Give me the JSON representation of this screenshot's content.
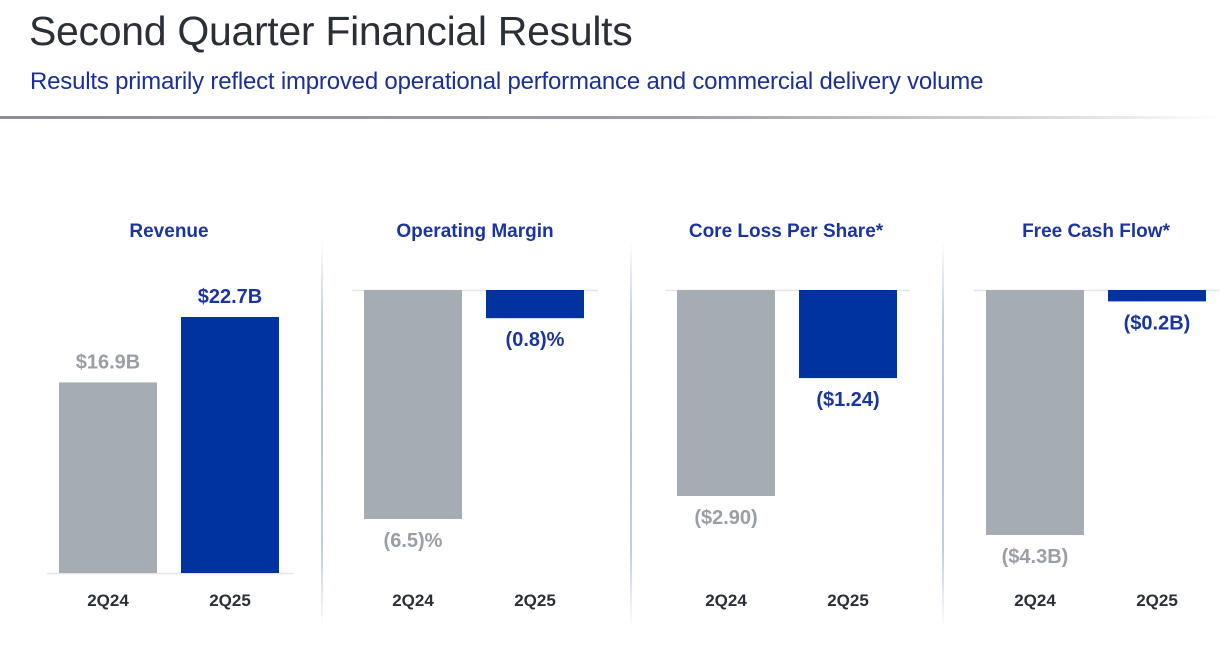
{
  "header": {
    "title": "Second Quarter Financial Results",
    "subtitle": "Results primarily reflect improved operational performance and commercial delivery volume"
  },
  "colors": {
    "prior_year": "#a5acb3",
    "current_year": "#0033a0",
    "prior_label": "#9a9fa5",
    "current_label": "#1b35a0",
    "baseline": "#e3e5e8"
  },
  "chart_data": [
    {
      "type": "bar",
      "title": "Revenue",
      "categories": [
        "2Q24",
        "2Q25"
      ],
      "values": [
        16.9,
        22.7
      ],
      "unit": "$B",
      "value_labels": [
        "$16.9B",
        "$22.7B"
      ],
      "direction": "up",
      "xlabel": "",
      "ylabel": "",
      "ylim": [
        0,
        22.7
      ],
      "grid": false
    },
    {
      "type": "bar",
      "title": "Operating Margin",
      "categories": [
        "2Q24",
        "2Q25"
      ],
      "values": [
        -6.5,
        -0.8
      ],
      "unit": "%",
      "value_labels": [
        "(6.5)%",
        "(0.8)%"
      ],
      "direction": "down",
      "xlabel": "",
      "ylabel": "",
      "ylim": [
        -6.5,
        0
      ],
      "grid": false
    },
    {
      "type": "bar",
      "title": "Core Loss Per Share*",
      "categories": [
        "2Q24",
        "2Q25"
      ],
      "values": [
        -2.9,
        -1.24
      ],
      "unit": "$",
      "value_labels": [
        "($2.90)",
        "($1.24)"
      ],
      "direction": "down",
      "xlabel": "",
      "ylabel": "",
      "ylim": [
        -2.9,
        0
      ],
      "grid": false
    },
    {
      "type": "bar",
      "title": "Free Cash Flow*",
      "categories": [
        "2Q24",
        "2Q25"
      ],
      "values": [
        -4.3,
        -0.2
      ],
      "unit": "$B",
      "value_labels": [
        "($4.3B)",
        "($0.2B)"
      ],
      "direction": "down",
      "xlabel": "",
      "ylabel": "",
      "ylim": [
        -4.3,
        0
      ],
      "grid": false
    }
  ]
}
